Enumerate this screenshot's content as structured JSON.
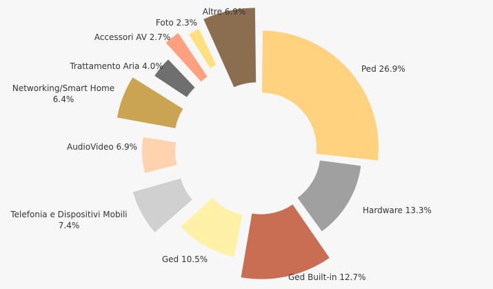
{
  "chart_data": {
    "type": "pie",
    "title": "",
    "legend": "none",
    "slices": [
      {
        "name": "Ped",
        "value": 26.9,
        "label": "Ped 26.9%",
        "color": "#ffd280"
      },
      {
        "name": "Hardware",
        "value": 13.3,
        "label": "Hardware 13.3%",
        "color": "#a0a0a0"
      },
      {
        "name": "Ged Built-in",
        "value": 12.7,
        "label": "Ged Built-in 12.7%",
        "color": "#c96e52"
      },
      {
        "name": "Ged",
        "value": 10.5,
        "label": "Ged 10.5%",
        "color": "#fff2a8"
      },
      {
        "name": "Telefonia e Dispositivi Mobili",
        "value": 7.4,
        "label": [
          "Telefonia e Dispositivi Mobili",
          "7.4%"
        ],
        "color": "#d0d0d0"
      },
      {
        "name": "AudioVideo",
        "value": 6.9,
        "label": "AudioVideo 6.9%",
        "color": "#ffd2b0"
      },
      {
        "name": "Networking/Smart Home",
        "value": 6.4,
        "label": [
          "Networking/Smart Home",
          "6.4%"
        ],
        "color": "#caa452"
      },
      {
        "name": "Trattamento Aria",
        "value": 4.0,
        "label": "Trattamento Aria 4.0%",
        "color": "#6f6f6f"
      },
      {
        "name": "Accessori AV",
        "value": 2.7,
        "label": "Accessori AV 2.7%",
        "color": "#ffa080"
      },
      {
        "name": "Foto",
        "value": 2.3,
        "label": "Foto 2.3%",
        "color": "#ffe080"
      },
      {
        "name": "Altre",
        "value": 6.9,
        "label": "Altre 6.9%",
        "color": "#8b6d50"
      }
    ]
  }
}
